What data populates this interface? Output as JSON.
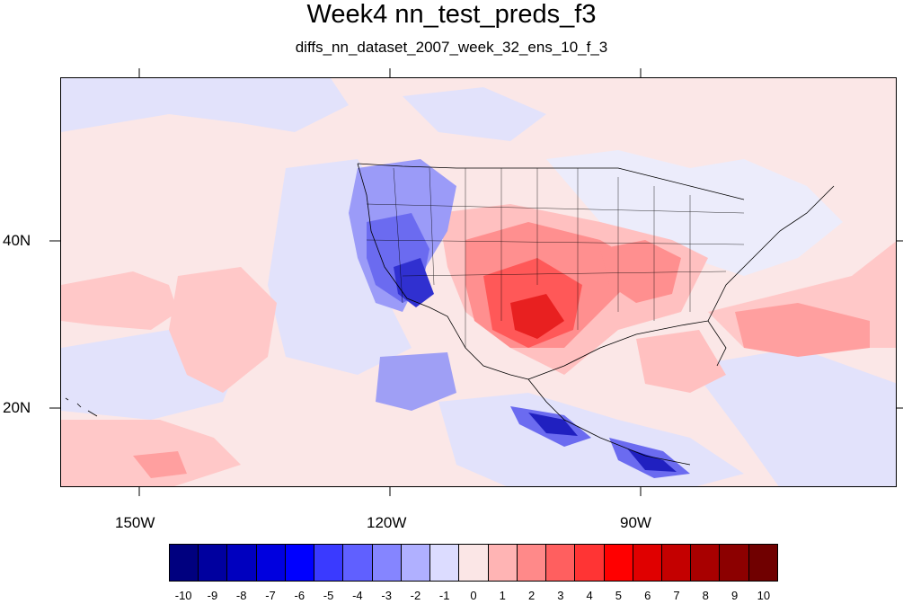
{
  "title": "Week4 nn_test_preds_f3",
  "subtitle": "diffs_nn_dataset_2007_week_32_ens_10_f_3",
  "axes": {
    "lon_labels": [
      "150W",
      "120W",
      "90W"
    ],
    "lat_labels": [
      "40N",
      "20N"
    ]
  },
  "colorbar": {
    "labels": [
      "-10",
      "-9",
      "-8",
      "-7",
      "-6",
      "-5",
      "-4",
      "-3",
      "-2",
      "-1",
      "0",
      "1",
      "2",
      "3",
      "4",
      "5",
      "6",
      "7",
      "8",
      "9",
      "10"
    ],
    "colors": [
      "#00007f",
      "#00009f",
      "#0000bf",
      "#0000df",
      "#0000ff",
      "#3a3aff",
      "#6060ff",
      "#8585ff",
      "#b0b0ff",
      "#dcdcff",
      "#fbe6e6",
      "#ffb4b4",
      "#ff8989",
      "#ff5f5f",
      "#ff3434",
      "#ff0000",
      "#e00000",
      "#c40000",
      "#a80000",
      "#8c0000",
      "#700000"
    ]
  },
  "map": {
    "lon_range": [
      -160,
      -60
    ],
    "lat_range": [
      10,
      59
    ],
    "background_value": 0.5,
    "features": "temperature difference anomaly field over North America and eastern Pacific"
  }
}
